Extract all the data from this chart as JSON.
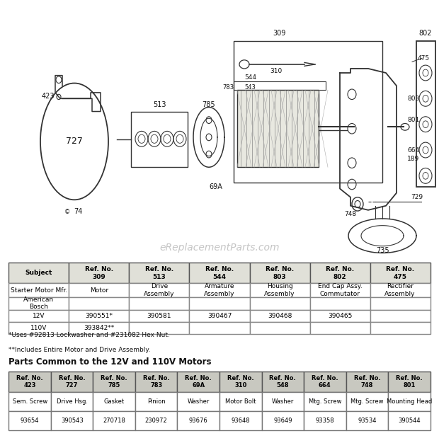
{
  "bg_color": "#ffffff",
  "diagram_bg": "#ffffff",
  "watermark": "eReplacementParts.com",
  "footnote1": "*Uses #92813 Lockwasher and #231082 Hex Nut.",
  "footnote2": "**Includes Entire Motor and Drive Assembly.",
  "parts_common_title": "Parts Common to the 12V and 110V Motors",
  "main_table_headers": [
    "Subject",
    "Ref. No.\n309",
    "Ref. No.\n513",
    "Ref. No.\n544",
    "Ref. No.\n803",
    "Ref. No.\n802",
    "Ref. No.\n475"
  ],
  "main_table_rows": [
    [
      "Starter Motor Mfr.",
      "Motor",
      "Drive\nAssembly",
      "Armature\nAssembly",
      "Housing\nAssembly",
      "End Cap Assy.\nCommutator",
      "Rectifier\nAssembly"
    ],
    [
      "American\nBosch",
      "",
      "",
      "",
      "",
      "",
      ""
    ],
    [
      "12V",
      "390551*",
      "390581",
      "390467",
      "390468",
      "390465",
      ""
    ],
    [
      "110V",
      "393842**",
      "",
      "",
      "",
      "",
      ""
    ]
  ],
  "common_ref_row": [
    "Ref. No.\n423",
    "Ref. No.\n727",
    "Ref. No.\n785",
    "Ref. No.\n783",
    "Ref. No.\n69A",
    "Ref. No.\n310",
    "Ref. No.\n548",
    "Ref. No.\n664",
    "Ref. No.\n748",
    "Ref. No.\n801"
  ],
  "common_name_row": [
    "Sem. Screw",
    "Drive Hsg.",
    "Gasket",
    "Pinion",
    "Washer",
    "Motor Bolt",
    "Washer",
    "Mtg. Screw",
    "Mtg. Screw",
    "Mounting Head"
  ],
  "common_num_row": [
    "93654",
    "390543",
    "270718",
    "230972",
    "93676",
    "93648",
    "93649",
    "93358",
    "93534",
    "390544"
  ],
  "line_color": "#333333",
  "label_color": "#111111",
  "table_header_bg": "#e0e0d8",
  "table_border": "#555555",
  "common_header_bg": "#c8c8c0"
}
